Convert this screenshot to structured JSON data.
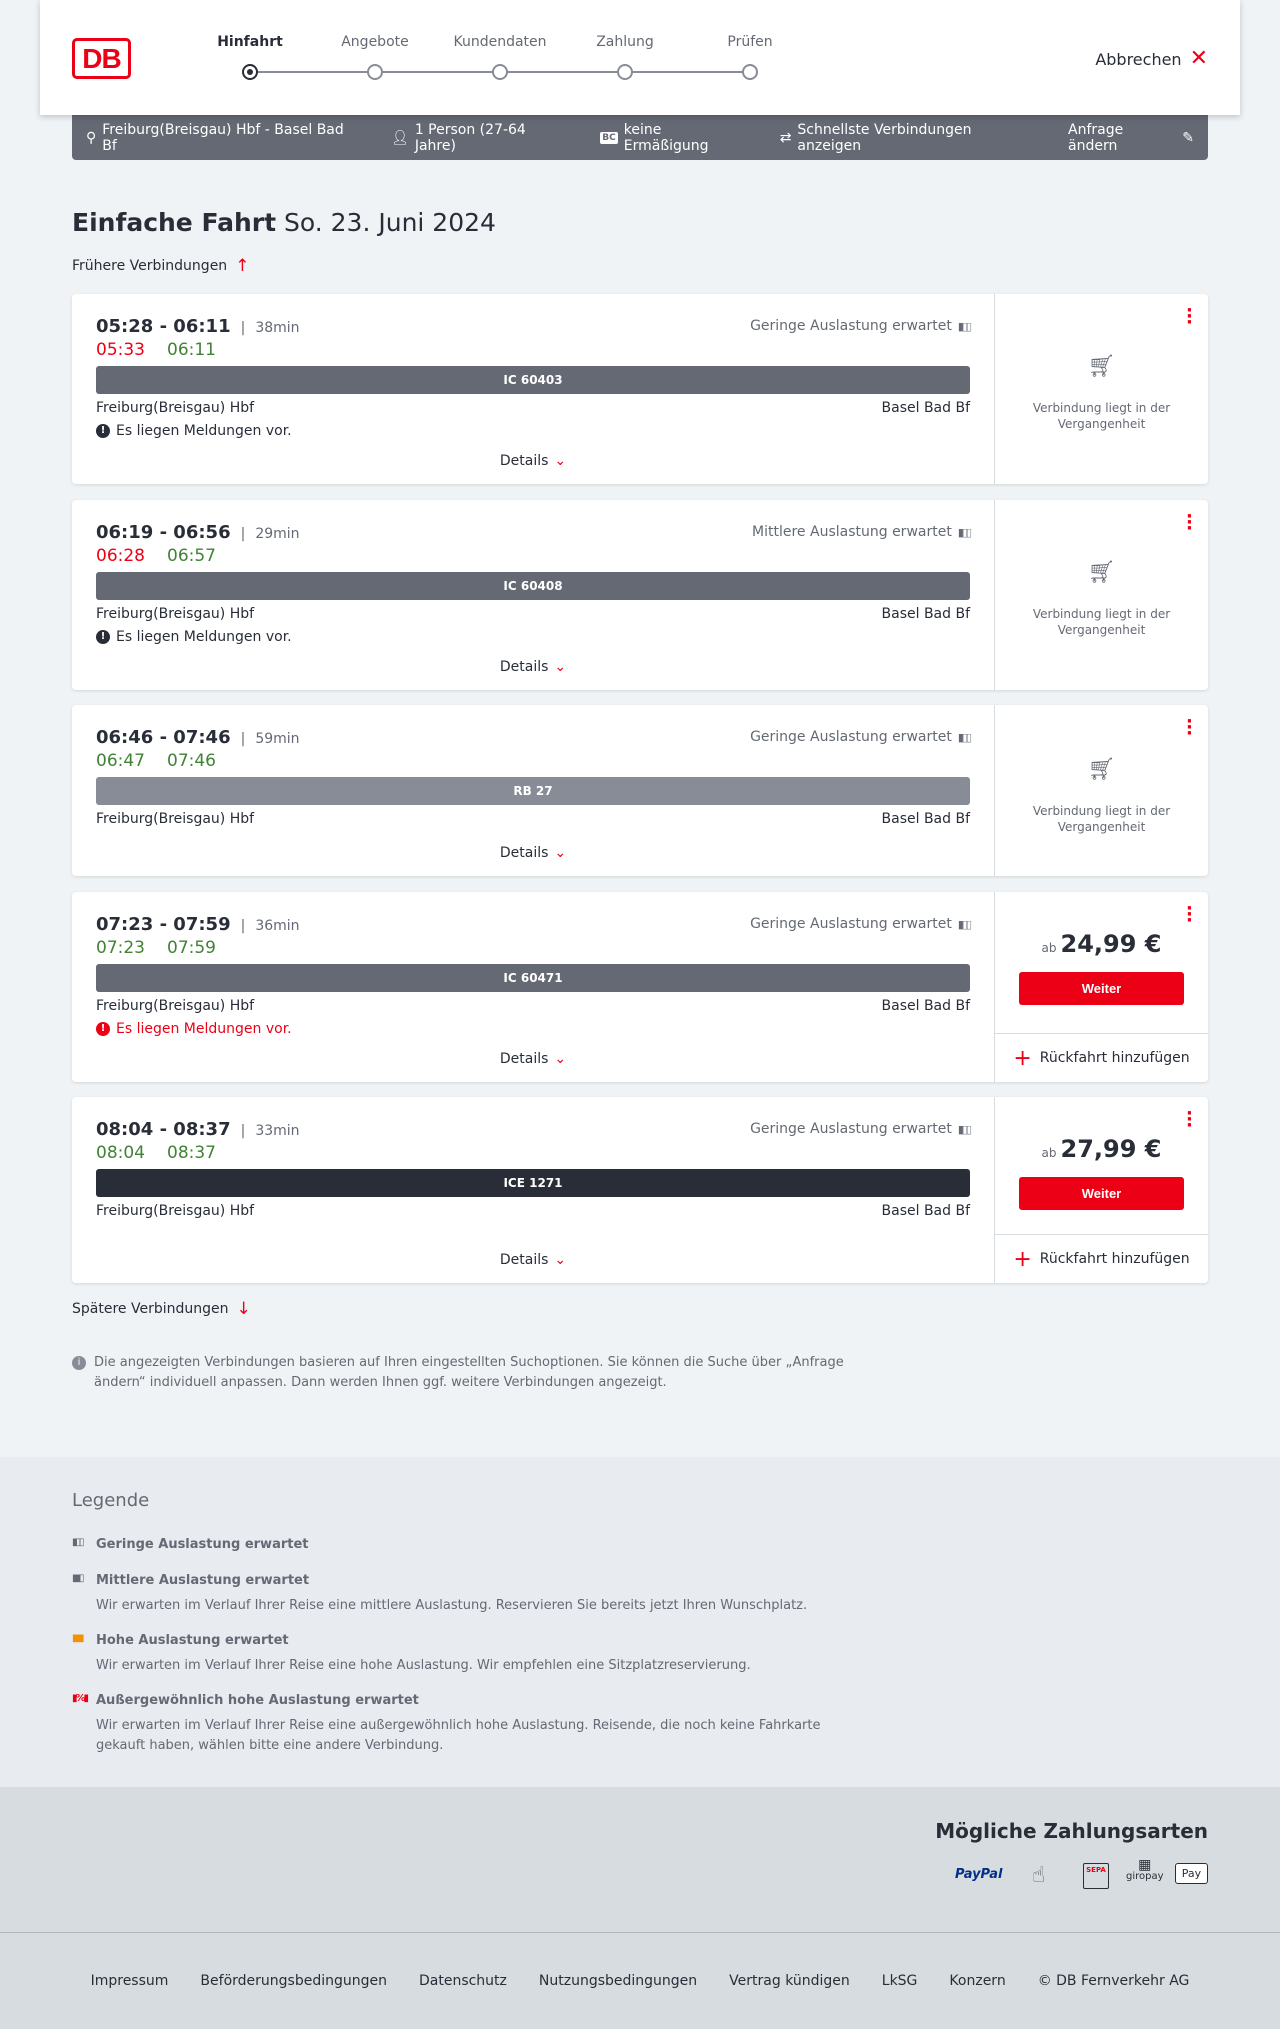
{
  "header": {
    "logo": "DB",
    "steps": [
      "Hinfahrt",
      "Angebote",
      "Kundendaten",
      "Zahlung",
      "Prüfen"
    ],
    "active_step": 0,
    "cancel": "Abbrechen"
  },
  "summary": {
    "route": "Freiburg(Breisgau) Hbf - Basel Bad Bf",
    "persons": "1 Person (27-64 Jahre)",
    "discount_badge": "BC",
    "discount": "keine Ermäßigung",
    "fastest": "Schnellste Verbindungen anzeigen",
    "change": "Anfrage ändern"
  },
  "page": {
    "title": "Einfache Fahrt",
    "date": "So. 23. Juni 2024",
    "earlier": "Frühere Verbindungen",
    "later": "Spätere Verbindungen",
    "info": "Die angezeigten Verbindungen basieren auf Ihren eingestellten Suchoptionen. Sie können die Suche über „Anfrage ändern“ individuell anpassen. Dann werden Ihnen ggf. weitere Verbindungen angezeigt."
  },
  "colors": {
    "accent": "#ec0016",
    "delay": "#ec0016",
    "ontime": "#408335"
  },
  "connections": [
    {
      "time": "05:28 - 06:11",
      "duration": "38min",
      "occupancy": "Geringe Auslastung erwartet",
      "rt_dep": "05:33",
      "rt_dep_late": true,
      "rt_arr": "06:11",
      "rt_arr_late": false,
      "train": "IC 60403",
      "train_color": "#646973",
      "from": "Freiburg(Breisgau) Hbf",
      "to": "Basel Bad Bf",
      "message": "Es liegen Meldungen vor.",
      "message_red": false,
      "details": "Details",
      "past": "Verbindung liegt in der Vergangenheit"
    },
    {
      "time": "06:19 - 06:56",
      "duration": "29min",
      "occupancy": "Mittlere Auslastung erwartet",
      "rt_dep": "06:28",
      "rt_dep_late": true,
      "rt_arr": "06:57",
      "rt_arr_late": false,
      "train": "IC 60408",
      "train_color": "#646973",
      "from": "Freiburg(Breisgau) Hbf",
      "to": "Basel Bad Bf",
      "message": "Es liegen Meldungen vor.",
      "message_red": false,
      "details": "Details",
      "past": "Verbindung liegt in der Vergangenheit"
    },
    {
      "time": "06:46 - 07:46",
      "duration": "59min",
      "occupancy": "Geringe Auslastung erwartet",
      "rt_dep": "06:47",
      "rt_dep_late": false,
      "rt_arr": "07:46",
      "rt_arr_late": false,
      "train": "RB 27",
      "train_color": "#878c96",
      "from": "Freiburg(Breisgau) Hbf",
      "to": "Basel Bad Bf",
      "details": "Details",
      "past": "Verbindung liegt in der Vergangenheit"
    },
    {
      "time": "07:23 - 07:59",
      "duration": "36min",
      "occupancy": "Geringe Auslastung erwartet",
      "rt_dep": "07:23",
      "rt_dep_late": false,
      "rt_arr": "07:59",
      "rt_arr_late": false,
      "train": "IC 60471",
      "train_color": "#646973",
      "from": "Freiburg(Breisgau) Hbf",
      "to": "Basel Bad Bf",
      "message": "Es liegen Meldungen vor.",
      "message_red": true,
      "details": "Details",
      "price_prefix": "ab",
      "price": "24,99 €",
      "button": "Weiter",
      "return": "Rückfahrt hinzufügen"
    },
    {
      "time": "08:04 - 08:37",
      "duration": "33min",
      "occupancy": "Geringe Auslastung erwartet",
      "rt_dep": "08:04",
      "rt_dep_late": false,
      "rt_arr": "08:37",
      "rt_arr_late": false,
      "train": "ICE 1271",
      "train_color": "#282d37",
      "from": "Freiburg(Breisgau) Hbf",
      "to": "Basel Bad Bf",
      "details": "Details",
      "price_prefix": "ab",
      "price": "27,99 €",
      "button": "Weiter",
      "return": "Rückfahrt hinzufügen"
    }
  ],
  "legend": {
    "title": "Legende",
    "items": [
      {
        "title": "Geringe Auslastung erwartet",
        "icon_color": "#646973"
      },
      {
        "title": "Mittlere Auslastung erwartet",
        "text": "Wir erwarten im Verlauf Ihrer Reise eine mittlere Auslastung. Reservieren Sie bereits jetzt Ihren Wunschplatz.",
        "icon_color": "#646973"
      },
      {
        "title": "Hohe Auslastung erwartet",
        "text": "Wir erwarten im Verlauf Ihrer Reise eine hohe Auslastung. Wir empfehlen eine Sitzplatzreservierung.",
        "icon_color": "#f39200"
      },
      {
        "title": "Außergewöhnlich hohe Auslastung erwartet",
        "text": "Wir erwarten im Verlauf Ihrer Reise eine außergewöhnlich hohe Auslastung. Reisende, die noch keine Fahrkarte gekauft haben, wählen bitte eine andere Verbindung.",
        "icon_color": "#ec0016"
      }
    ]
  },
  "payment": {
    "title": "Mögliche Zahlungsarten",
    "methods": [
      "PayPal",
      "SEPA",
      "giropay",
      "Pay"
    ]
  },
  "footer": [
    "Impressum",
    "Beförderungsbedingungen",
    "Datenschutz",
    "Nutzungsbedingungen",
    "Vertrag kündigen",
    "LkSG",
    "Konzern",
    "© DB Fernverkehr AG"
  ]
}
